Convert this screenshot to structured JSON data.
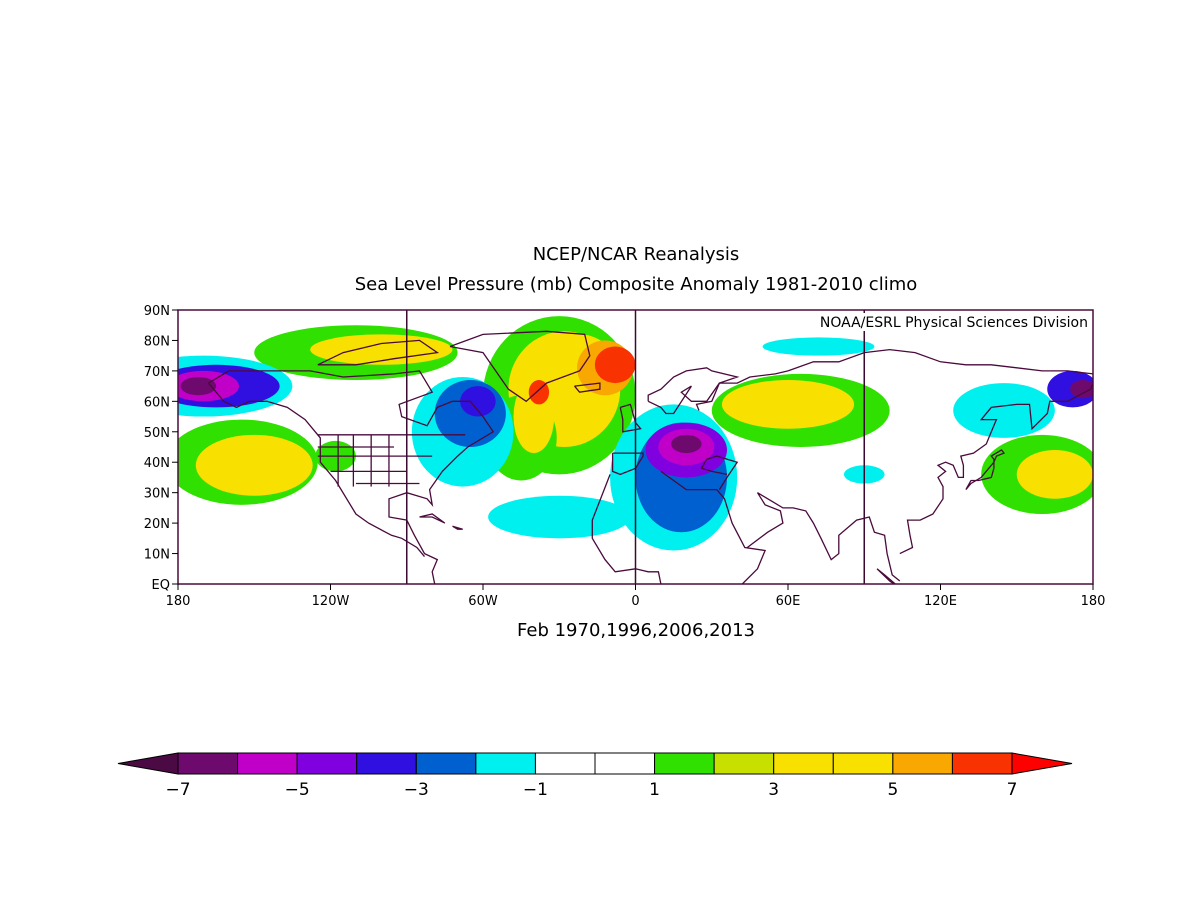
{
  "title": "NCEP/NCAR Reanalysis",
  "subtitle": "Sea Level Pressure (mb) Composite Anomaly 1981-2010 climo",
  "credit": "NOAA/ESRL Physical Sciences Division",
  "period": "Feb 1970,1996,2006,2013",
  "map": {
    "lon_range": [
      -180,
      180
    ],
    "lat_range": [
      0,
      90
    ],
    "lat_ticks": [
      {
        "value": 90,
        "label": "90N"
      },
      {
        "value": 80,
        "label": "80N"
      },
      {
        "value": 70,
        "label": "70N"
      },
      {
        "value": 60,
        "label": "60N"
      },
      {
        "value": 50,
        "label": "50N"
      },
      {
        "value": 40,
        "label": "40N"
      },
      {
        "value": 30,
        "label": "30N"
      },
      {
        "value": 20,
        "label": "20N"
      },
      {
        "value": 10,
        "label": "10N"
      },
      {
        "value": 0,
        "label": "EQ"
      }
    ],
    "lon_ticks": [
      {
        "value": -180,
        "label": "180"
      },
      {
        "value": -120,
        "label": "120W"
      },
      {
        "value": -60,
        "label": "60W"
      },
      {
        "value": 0,
        "label": "0"
      },
      {
        "value": 60,
        "label": "60E"
      },
      {
        "value": 120,
        "label": "120E"
      },
      {
        "value": 180,
        "label": "180"
      }
    ],
    "meridian_lines": [
      -90,
      0,
      90
    ],
    "anomaly_regions": [
      {
        "level": 1,
        "lon": -110,
        "lat": 76,
        "rx": 40,
        "ry": 9
      },
      {
        "level": 3,
        "lon": -100,
        "lat": 77,
        "rx": 28,
        "ry": 5
      },
      {
        "level": 1,
        "lon": -30,
        "lat": 62,
        "rx": 30,
        "ry": 26
      },
      {
        "level": 3,
        "lon": -28,
        "lat": 64,
        "rx": 22,
        "ry": 19
      },
      {
        "level": 4,
        "lon": -22,
        "lat": 68,
        "rx": 16,
        "ry": 14
      },
      {
        "level": 5,
        "lon": -12,
        "lat": 71,
        "rx": 11,
        "ry": 9
      },
      {
        "level": 6,
        "lon": -8,
        "lat": 72,
        "rx": 8,
        "ry": 6
      },
      {
        "level": 1,
        "lon": -45,
        "lat": 48,
        "rx": 14,
        "ry": 14
      },
      {
        "level": 4,
        "lon": -40,
        "lat": 55,
        "rx": 8,
        "ry": 12
      },
      {
        "level": 6,
        "lon": -38,
        "lat": 63,
        "rx": 4,
        "ry": 4
      },
      {
        "level": 1,
        "lon": -155,
        "lat": 40,
        "rx": 30,
        "ry": 14
      },
      {
        "level": 3,
        "lon": -150,
        "lat": 39,
        "rx": 23,
        "ry": 10
      },
      {
        "level": 1,
        "lon": -118,
        "lat": 42,
        "rx": 8,
        "ry": 5
      },
      {
        "level": 1,
        "lon": 65,
        "lat": 57,
        "rx": 35,
        "ry": 12
      },
      {
        "level": 3,
        "lon": 60,
        "lat": 59,
        "rx": 26,
        "ry": 8
      },
      {
        "level": 1,
        "lon": 160,
        "lat": 36,
        "rx": 24,
        "ry": 13
      },
      {
        "level": 3,
        "lon": 165,
        "lat": 36,
        "rx": 15,
        "ry": 8
      },
      {
        "level": -1,
        "lon": -170,
        "lat": 65,
        "rx": 35,
        "ry": 10
      },
      {
        "level": -3,
        "lon": -165,
        "lat": 65,
        "rx": 25,
        "ry": 7
      },
      {
        "level": -5,
        "lon": -170,
        "lat": 65,
        "rx": 14,
        "ry": 5
      },
      {
        "level": -6,
        "lon": -172,
        "lat": 65,
        "rx": 7,
        "ry": 3
      },
      {
        "level": -1,
        "lon": -68,
        "lat": 50,
        "rx": 20,
        "ry": 18
      },
      {
        "level": -2,
        "lon": -65,
        "lat": 56,
        "rx": 14,
        "ry": 11
      },
      {
        "level": -3,
        "lon": -62,
        "lat": 60,
        "rx": 7,
        "ry": 5
      },
      {
        "level": -1,
        "lon": 15,
        "lat": 35,
        "rx": 25,
        "ry": 24
      },
      {
        "level": -1,
        "lon": -30,
        "lat": 22,
        "rx": 28,
        "ry": 7
      },
      {
        "level": -2,
        "lon": 18,
        "lat": 35,
        "rx": 18,
        "ry": 18
      },
      {
        "level": -4,
        "lon": 20,
        "lat": 44,
        "rx": 16,
        "ry": 9
      },
      {
        "level": -5,
        "lon": 20,
        "lat": 45,
        "rx": 11,
        "ry": 6
      },
      {
        "level": -6,
        "lon": 20,
        "lat": 46,
        "rx": 6,
        "ry": 3
      },
      {
        "level": -1,
        "lon": 90,
        "lat": 36,
        "rx": 8,
        "ry": 3
      },
      {
        "level": -1,
        "lon": 72,
        "lat": 78,
        "rx": 22,
        "ry": 3
      },
      {
        "level": -1,
        "lon": 145,
        "lat": 57,
        "rx": 20,
        "ry": 9
      },
      {
        "level": -3,
        "lon": 172,
        "lat": 64,
        "rx": 10,
        "ry": 6
      },
      {
        "level": -6,
        "lon": 176,
        "lat": 64,
        "rx": 5,
        "ry": 3
      }
    ]
  },
  "colorbar": {
    "levels": [
      -7,
      -6,
      -5,
      -4,
      -3,
      -2,
      -1,
      0,
      1,
      2,
      3,
      4,
      5,
      6,
      7
    ],
    "labels": [
      "-7",
      "-5",
      "-3",
      "-1",
      "1",
      "3",
      "5",
      "7"
    ],
    "colors": {
      "under": "#4b0a44",
      "bins": [
        "#6e0a6e",
        "#c000c8",
        "#8000e0",
        "#3010e0",
        "#0060d0",
        "#00f0f0",
        "#ffffff",
        "#ffffff",
        "#30e000",
        "#c8e000",
        "#f8e000",
        "#f8e000",
        "#f8a800",
        "#f83200"
      ],
      "over": "#ff0000"
    }
  }
}
